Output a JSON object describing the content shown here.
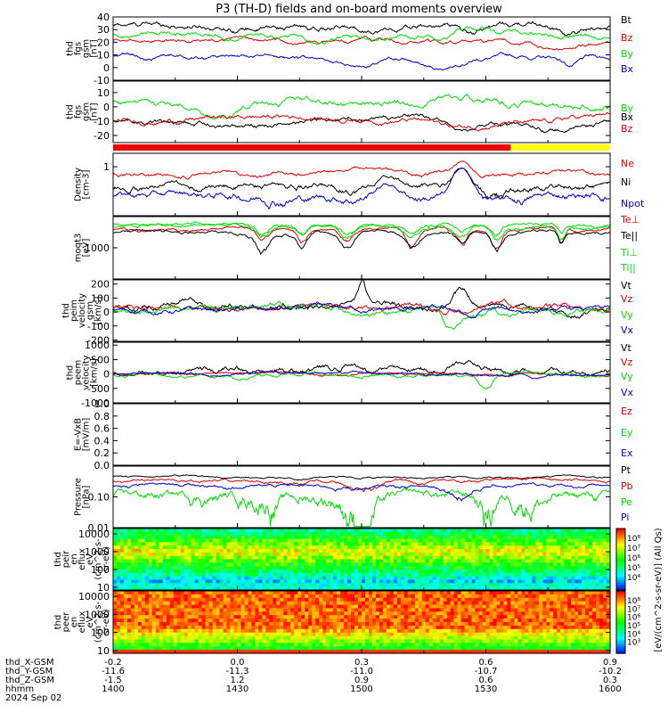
{
  "title": "P3 (TH-D) fields and on-board moments overview",
  "colors": {
    "black": "#000000",
    "red": "#e00000",
    "green": "#00dd00",
    "blue": "#0000cc",
    "yellow": "#ffff00",
    "mode_red": "#ee0000"
  },
  "chart_data": [
    {
      "type": "line",
      "name": "fgs-gsm-1",
      "ylabel": [
        "thd",
        "fgs",
        "gsm",
        "[nT]"
      ],
      "ylim": [
        -10,
        40
      ],
      "yticks": [
        "40",
        "30",
        "20",
        "10",
        "0",
        "-10"
      ],
      "ytick_values": [
        40,
        30,
        20,
        10,
        0,
        -10
      ],
      "series": [
        {
          "name": "Bt",
          "color": "#000000"
        },
        {
          "name": "Bz",
          "color": "#e00000"
        },
        {
          "name": "By",
          "color": "#00dd00"
        },
        {
          "name": "Bx",
          "color": "#0000cc"
        }
      ]
    },
    {
      "type": "line",
      "name": "fgs-gsm-2",
      "ylabel": [
        "thd",
        "fgs",
        "gsm",
        "[nT]"
      ],
      "ylim": [
        -25,
        18
      ],
      "yticks": [
        "10",
        "0",
        "-10",
        "-20"
      ],
      "ytick_values": [
        10,
        0,
        -10,
        -20
      ],
      "series": [
        {
          "name": "By",
          "color": "#00dd00"
        },
        {
          "name": "Bx",
          "color": "#000000"
        },
        {
          "name": "Bz",
          "color": "#e00000"
        }
      ]
    },
    {
      "type": "line",
      "name": "density",
      "ylabel": [
        "Density",
        "[cm-3]"
      ],
      "yscale": "log",
      "ylim": [
        0.08,
        2.0
      ],
      "yticks": [
        "1"
      ],
      "ytick_values": [
        1
      ],
      "series": [
        {
          "name": "Ne",
          "color": "#e00000"
        },
        {
          "name": "Ni",
          "color": "#000000"
        },
        {
          "name": "Npot",
          "color": "#0000cc"
        }
      ]
    },
    {
      "type": "line",
      "name": "temperature",
      "ylabel": [
        "moqt3",
        "[eV]"
      ],
      "yscale": "log",
      "ylim": [
        200,
        5000
      ],
      "yticks": [
        "1000"
      ],
      "ytick_values": [
        1000
      ],
      "series": [
        {
          "name": "Te⊥",
          "color": "#e00000"
        },
        {
          "name": "Te||",
          "color": "#000000"
        },
        {
          "name": "Ti⊥",
          "color": "#00dd00"
        },
        {
          "name": "Ti||",
          "color": "#00dd00"
        }
      ]
    },
    {
      "type": "line",
      "name": "peim-velocity",
      "ylabel": [
        "thd",
        "peim",
        "velocity",
        "gsm",
        "[km/s]"
      ],
      "ylim": [
        -210,
        230
      ],
      "yticks": [
        "200",
        "100",
        "0",
        "-100",
        "-200"
      ],
      "ytick_values": [
        200,
        100,
        0,
        -100,
        -200
      ],
      "series": [
        {
          "name": "Vt",
          "color": "#000000"
        },
        {
          "name": "Vz",
          "color": "#e00000"
        },
        {
          "name": "Vy",
          "color": "#00dd00"
        },
        {
          "name": "Vx",
          "color": "#0000cc"
        }
      ]
    },
    {
      "type": "line",
      "name": "peem-velocity",
      "ylabel": [
        "thd",
        "peem",
        "velocity",
        "[km/s]"
      ],
      "ylim": [
        -1000,
        1100
      ],
      "yticks": [
        "1000",
        "500",
        "0",
        "-500",
        "-1000"
      ],
      "ytick_values": [
        1000,
        500,
        0,
        -500,
        -1000
      ],
      "series": [
        {
          "name": "Vt",
          "color": "#000000"
        },
        {
          "name": "Vz",
          "color": "#e00000"
        },
        {
          "name": "Vy",
          "color": "#00dd00"
        },
        {
          "name": "Vx",
          "color": "#0000cc"
        }
      ]
    },
    {
      "type": "line",
      "name": "efield",
      "ylabel": [
        "E=-VxB",
        "[mV/m]"
      ],
      "ylim": [
        0,
        1
      ],
      "yticks": [
        "1.0",
        "0.8",
        "0.6",
        "0.4",
        "0.2",
        "0.0"
      ],
      "ytick_values": [
        1.0,
        0.8,
        0.6,
        0.4,
        0.2,
        0.0
      ],
      "series": [
        {
          "name": "Ez",
          "color": "#e00000"
        },
        {
          "name": "Ey",
          "color": "#00dd00"
        },
        {
          "name": "Ex",
          "color": "#0000cc"
        }
      ]
    },
    {
      "type": "line",
      "name": "pressure",
      "ylabel": [
        "Pressure",
        "[nPa]"
      ],
      "yscale": "log",
      "ylim": [
        0.01,
        1.0
      ],
      "yticks": [
        "0.10",
        "0.01"
      ],
      "ytick_values": [
        0.1,
        0.01
      ],
      "series": [
        {
          "name": "Pt",
          "color": "#000000"
        },
        {
          "name": "Pb",
          "color": "#e00000"
        },
        {
          "name": "Pe",
          "color": "#00dd00"
        },
        {
          "name": "Pi",
          "color": "#0000cc"
        }
      ]
    },
    {
      "type": "heatmap",
      "name": "peir-eflux",
      "ylabel": [
        "thd",
        "peir",
        "en",
        "eflux",
        "eV",
        "(cm^2-s-",
        "sr-eV)"
      ],
      "yscale": "log",
      "ylim": [
        7,
        20000
      ],
      "yticks": [
        "10000",
        "1000",
        "100",
        "10"
      ],
      "ytick_values": [
        10000,
        1000,
        100,
        10
      ]
    },
    {
      "type": "heatmap",
      "name": "peer-eflux",
      "ylabel": [
        "thd",
        "peer",
        "en",
        "eflux",
        "eV",
        "(cm^2-s-",
        "sr-eV)"
      ],
      "yscale": "log",
      "ylim": [
        7,
        20000
      ],
      "yticks": [
        "10000",
        "1000",
        "100",
        "10"
      ],
      "ytick_values": [
        10000,
        1000,
        100,
        10
      ]
    }
  ],
  "colorbar": {
    "labels_top": [
      "10⁸",
      "10⁷",
      "10⁶",
      "10⁵",
      "10⁴"
    ],
    "labels_bottom": [
      "10⁸",
      "10⁷",
      "10⁶",
      "10⁵",
      "10⁴",
      "10³"
    ],
    "unit": "[eV/(cm^2-s-sr-eV)] (All Qs)"
  },
  "time_axis": {
    "rows": [
      {
        "label": "thd_X-GSM",
        "values": [
          "-0.2",
          "0.0",
          "0.3",
          "0.6",
          "0.9"
        ]
      },
      {
        "label": "thd_Y-GSM",
        "values": [
          "-11.6",
          "-11.3",
          "-11.0",
          "-10.7",
          "-10.2"
        ]
      },
      {
        "label": "thd_Z-GSM",
        "values": [
          "-1.5",
          "1.2",
          "0.9",
          "0.6",
          "0.3"
        ]
      },
      {
        "label": "hhmm",
        "values": [
          "1400",
          "1430",
          "1500",
          "1530",
          "1600"
        ]
      }
    ],
    "date": "2024 Sep 02"
  }
}
